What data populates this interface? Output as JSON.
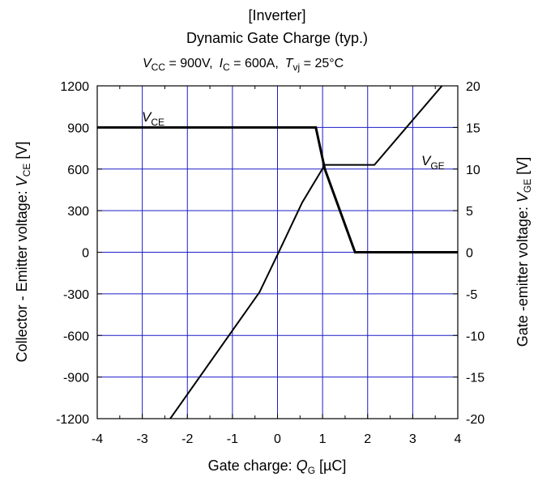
{
  "chart_data": {
    "type": "line",
    "title": "[Inverter]",
    "subtitle": "Dynamic Gate Charge (typ.)",
    "conditions": {
      "vcc_sym": "V",
      "vcc_sub": "CC",
      "vcc_val": " =   900V,",
      "ic_sym": "I",
      "ic_sub": "C",
      "ic_val": " =  600A,",
      "tvj_sym": "T",
      "tvj_sub": "vj",
      "tvj_val": " = 25°C"
    },
    "xlabel": {
      "text": "Gate charge: ",
      "sym": "Q",
      "sub": "G",
      "unit": " [µC]"
    },
    "ylabel_left": {
      "text": "Collector - Emitter voltage: ",
      "sym": "V",
      "sub": "CE",
      "unit": " [V]"
    },
    "ylabel_right": {
      "text": "Gate -emitter voltage: ",
      "sym": "V",
      "sub": "GE",
      "unit": " [V]"
    },
    "xlim": [
      -4,
      4
    ],
    "ylim_left": [
      -1200,
      1200
    ],
    "ylim_right": [
      -20,
      20
    ],
    "xticks": [
      -4,
      -3,
      -2,
      -1,
      0,
      1,
      2,
      3,
      4
    ],
    "yticks_left": [
      -1200,
      -900,
      -600,
      -300,
      0,
      300,
      600,
      900,
      1200
    ],
    "yticks_right": [
      -20,
      -15,
      -10,
      -5,
      0,
      5,
      10,
      15,
      20
    ],
    "grid": true,
    "grid_color": "#1c1cc8",
    "series": [
      {
        "name": "VCE",
        "label_sym": "V",
        "label_sub": "CE",
        "axis": "left",
        "x": [
          -4,
          0.85,
          1.05,
          1.72,
          4
        ],
        "y": [
          900,
          900,
          600,
          0,
          0
        ]
      },
      {
        "name": "VGE",
        "label_sym": "V",
        "label_sub": "GE",
        "axis": "right",
        "x": [
          -2.38,
          -0.4,
          0,
          0.55,
          1.05,
          2.15,
          3.65
        ],
        "y": [
          -20,
          -4.8,
          -0.3,
          6.0,
          10.5,
          10.5,
          20
        ]
      }
    ]
  }
}
